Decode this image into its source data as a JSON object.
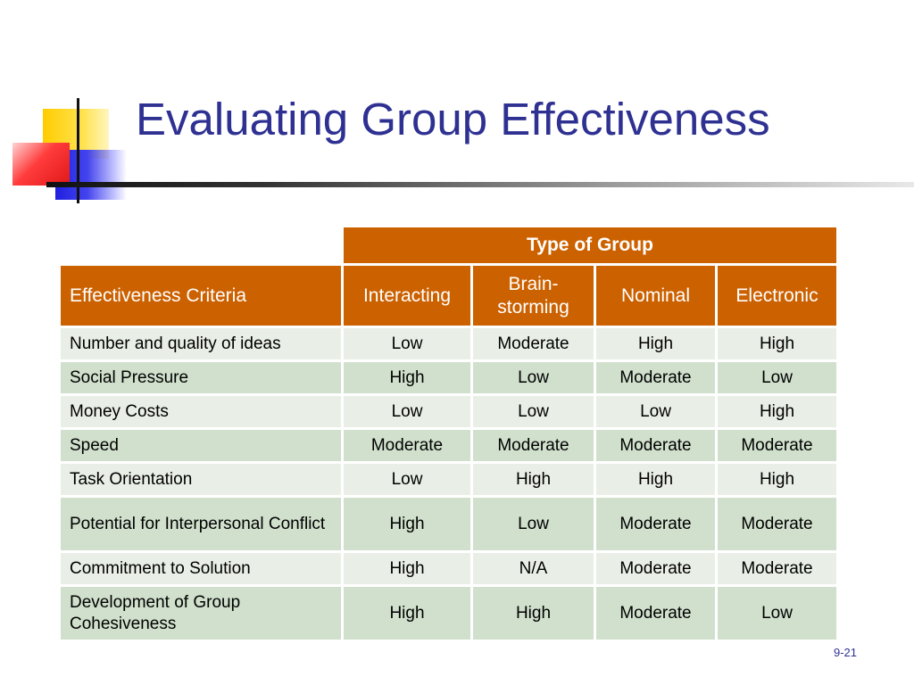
{
  "slide": {
    "title": "Evaluating Group Effectiveness",
    "page_number": "9-21"
  },
  "table": {
    "group_header": "Type of Group",
    "criteria_header": "Effectiveness Criteria",
    "columns": [
      "Interacting",
      "Brain-\nstorming",
      "Nominal",
      "Electronic"
    ],
    "rows": [
      {
        "criteria": "Number and quality of ideas",
        "values": [
          "Low",
          "Moderate",
          "High",
          "High"
        ]
      },
      {
        "criteria": "Social Pressure",
        "values": [
          "High",
          "Low",
          "Moderate",
          "Low"
        ]
      },
      {
        "criteria": "Money Costs",
        "values": [
          "Low",
          "Low",
          "Low",
          "High"
        ]
      },
      {
        "criteria": "Speed",
        "values": [
          "Moderate",
          "Moderate",
          "Moderate",
          "Moderate"
        ]
      },
      {
        "criteria": "Task Orientation",
        "values": [
          "Low",
          "High",
          "High",
          "High"
        ]
      },
      {
        "criteria": "Potential for Interpersonal Conflict",
        "values": [
          "High",
          "Low",
          "Moderate",
          "Moderate"
        ]
      },
      {
        "criteria": "Commitment to Solution",
        "values": [
          "High",
          "N/A",
          "Moderate",
          "Moderate"
        ]
      },
      {
        "criteria": "Development of Group Cohesiveness",
        "values": [
          "High",
          "High",
          "Moderate",
          "Low"
        ]
      }
    ]
  },
  "colors": {
    "title": "#2e3192",
    "header_fill": "#cc6100",
    "row_light": "#e9efe6",
    "row_dark": "#d0e0cc"
  }
}
